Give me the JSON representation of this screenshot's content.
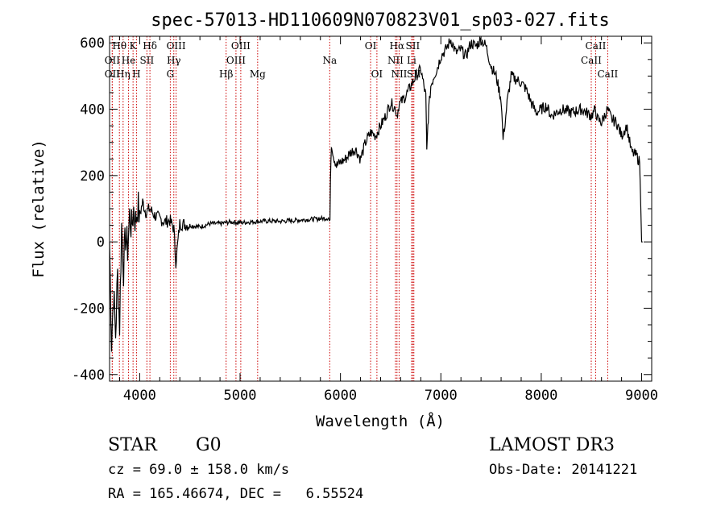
{
  "chart_data": {
    "type": "line",
    "title": "spec-57013-HD110609N070823V01_sp03-027.fits",
    "xlabel": "Wavelength (Å)",
    "ylabel": "Flux (relative)",
    "xlim": [
      3700,
      9100
    ],
    "ylim": [
      -420,
      620
    ],
    "xticks": [
      4000,
      5000,
      6000,
      7000,
      8000,
      9000
    ],
    "yticks": [
      -400,
      -200,
      0,
      200,
      400,
      600
    ],
    "series": [
      {
        "x": [
          3700,
          3720,
          3740,
          3760,
          3780,
          3800,
          3820,
          3840,
          3860,
          3880,
          3900,
          3920,
          3940,
          3960,
          3980,
          4000,
          4030,
          4060,
          4100,
          4150,
          4200,
          4250,
          4300,
          4340,
          4360,
          4400,
          4500,
          4600,
          4700,
          4800,
          4900,
          5000,
          5100,
          5200,
          5300,
          5400,
          5500,
          5600,
          5700,
          5800,
          5880,
          5895,
          5900,
          5910,
          5930,
          5960,
          6000,
          6050,
          6100,
          6150,
          6200,
          6250,
          6300,
          6350,
          6400,
          6450,
          6500,
          6550,
          6563,
          6580,
          6600,
          6650,
          6700,
          6750,
          6800,
          6850,
          6860,
          6870,
          6880,
          6900,
          6930,
          6960,
          7000,
          7050,
          7100,
          7150,
          7200,
          7250,
          7300,
          7350,
          7400,
          7450,
          7500,
          7550,
          7600,
          7620,
          7640,
          7660,
          7700,
          7750,
          7800,
          7850,
          7900,
          7950,
          8000,
          8050,
          8100,
          8200,
          8300,
          8400,
          8500,
          8540,
          8560,
          8600,
          8660,
          8700,
          8750,
          8800,
          8850,
          8900,
          8950,
          8980,
          9000,
          9010
        ],
        "y": [
          0,
          -300,
          -150,
          -280,
          -100,
          -250,
          50,
          -80,
          20,
          -20,
          80,
          40,
          100,
          60,
          110,
          80,
          120,
          90,
          100,
          80,
          70,
          60,
          65,
          40,
          -60,
          55,
          50,
          45,
          55,
          55,
          60,
          58,
          60,
          62,
          63,
          62,
          64,
          66,
          68,
          70,
          72,
          60,
          200,
          300,
          260,
          230,
          240,
          250,
          270,
          280,
          250,
          300,
          330,
          320,
          350,
          380,
          420,
          400,
          380,
          410,
          420,
          440,
          470,
          500,
          520,
          440,
          270,
          350,
          400,
          470,
          500,
          520,
          560,
          580,
          610,
          570,
          580,
          560,
          600,
          590,
          610,
          590,
          530,
          500,
          430,
          310,
          360,
          420,
          500,
          490,
          480,
          460,
          420,
          390,
          400,
          410,
          380,
          400,
          390,
          400,
          380,
          400,
          370,
          360,
          400,
          370,
          360,
          320,
          350,
          270,
          260,
          240,
          0,
          0
        ]
      }
    ],
    "lines": [
      {
        "label": "Hθ",
        "wl": 3798,
        "row": 1
      },
      {
        "label": "OII",
        "wl": 3727,
        "row": 2
      },
      {
        "label": "OII",
        "wl": 3727,
        "row": 3
      },
      {
        "label": "Hη",
        "wl": 3835,
        "row": 3
      },
      {
        "label": "K",
        "wl": 3934,
        "row": 1
      },
      {
        "label": "He",
        "wl": 3889,
        "row": 2
      },
      {
        "label": "H",
        "wl": 3968,
        "row": 3
      },
      {
        "label": "Hδ",
        "wl": 4102,
        "row": 1
      },
      {
        "label": "SII",
        "wl": 4072,
        "row": 2
      },
      {
        "label": "OIII",
        "wl": 4363,
        "row": 1
      },
      {
        "label": "Hγ",
        "wl": 4340,
        "row": 2
      },
      {
        "label": "G",
        "wl": 4305,
        "row": 3
      },
      {
        "label": "OIII",
        "wl": 5007,
        "row": 1
      },
      {
        "label": "OIII",
        "wl": 4959,
        "row": 2
      },
      {
        "label": "Hβ",
        "wl": 4861,
        "row": 3
      },
      {
        "label": "Mg",
        "wl": 5175,
        "row": 3
      },
      {
        "label": "Na",
        "wl": 5893,
        "row": 2
      },
      {
        "label": "OI",
        "wl": 6300,
        "row": 1
      },
      {
        "label": "OI",
        "wl": 6363,
        "row": 3
      },
      {
        "label": "Hα",
        "wl": 6563,
        "row": 1
      },
      {
        "label": "SII",
        "wl": 6720,
        "row": 1
      },
      {
        "label": "NII",
        "wl": 6548,
        "row": 2
      },
      {
        "label": "Li",
        "wl": 6708,
        "row": 2
      },
      {
        "label": "NII",
        "wl": 6584,
        "row": 3
      },
      {
        "label": "SII",
        "wl": 6731,
        "row": 3
      },
      {
        "label": "CaII",
        "wl": 8542,
        "row": 1
      },
      {
        "label": "CaII",
        "wl": 8498,
        "row": 2
      },
      {
        "label": "CaII",
        "wl": 8662,
        "row": 3
      }
    ],
    "colors": {
      "spectrum": "#000000",
      "line_marker": "#cc0000",
      "axis": "#000000"
    }
  },
  "info": {
    "object_class": "STAR",
    "subclass": "G0",
    "survey": "LAMOST DR3",
    "redshift": "cz = 69.0 ± 158.0 km/s",
    "obs_date": "Obs-Date: 20141221",
    "coords": "RA = 165.46674, DEC =   6.55524"
  }
}
